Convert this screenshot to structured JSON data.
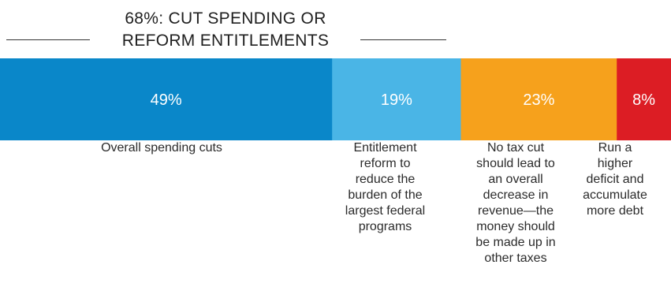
{
  "header": {
    "line1": "68%: CUT SPENDING OR",
    "line2": "REFORM ENTITLEMENTS"
  },
  "chart_data": {
    "type": "bar",
    "orientation": "horizontal-stacked",
    "categories": [
      "Overall spending cuts",
      "Entitlement reform to reduce the burden of the largest federal programs",
      "No tax cut should lead to an overall decrease in revenue—the money should be made up in other taxes",
      "Run a higher deficit and accumulate more debt"
    ],
    "values": [
      49,
      19,
      23,
      8
    ],
    "value_labels": [
      "49%",
      "19%",
      "23%",
      "8%"
    ],
    "colors": [
      "#0a87c9",
      "#4ab5e6",
      "#f6a11c",
      "#dc1d24"
    ]
  }
}
